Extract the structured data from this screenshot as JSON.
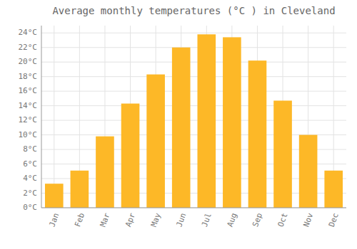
{
  "chart_data": {
    "type": "bar",
    "title": "Average monthly temperatures (°C ) in Cleveland",
    "categories": [
      "Jan",
      "Feb",
      "Mar",
      "Apr",
      "May",
      "Jun",
      "Jul",
      "Aug",
      "Sep",
      "Oct",
      "Nov",
      "Dec"
    ],
    "values": [
      3.3,
      5.1,
      9.8,
      14.3,
      18.3,
      22.0,
      23.8,
      23.4,
      20.2,
      14.7,
      10.0,
      5.1
    ],
    "color": "#FDB827",
    "ylim": [
      0,
      25
    ],
    "yticks": [
      {
        "value": 0,
        "label": "0°C"
      },
      {
        "value": 2,
        "label": "2°C"
      },
      {
        "value": 4,
        "label": "4°C"
      },
      {
        "value": 6,
        "label": "6°C"
      },
      {
        "value": 8,
        "label": "8°C"
      },
      {
        "value": 10,
        "label": "10°C"
      },
      {
        "value": 12,
        "label": "12°C"
      },
      {
        "value": 14,
        "label": "14°C"
      },
      {
        "value": 16,
        "label": "16°C"
      },
      {
        "value": 18,
        "label": "18°C"
      },
      {
        "value": 20,
        "label": "20°C"
      },
      {
        "value": 22,
        "label": "22°C"
      },
      {
        "value": 24,
        "label": "24°C"
      }
    ],
    "grid": true
  }
}
